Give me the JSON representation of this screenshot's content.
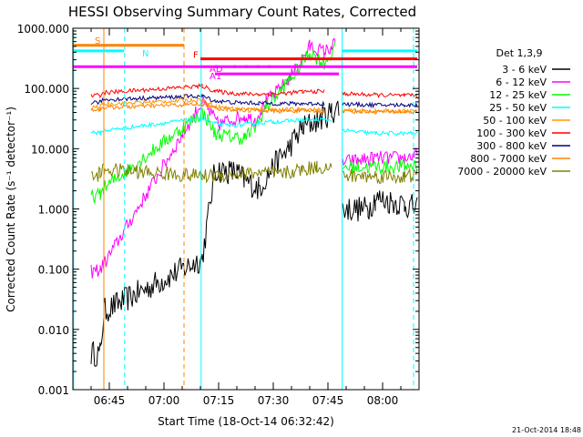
{
  "chart_data": {
    "type": "line",
    "title": "HESSI Observing Summary Count Rates, Corrected",
    "xlabel": "Start Time (18-Oct-14 06:32:42)",
    "ylabel": "Corrected Count Rate (s⁻¹ detector⁻¹)",
    "yscale": "log",
    "ylim": [
      0.001,
      1000
    ],
    "xlim_minutes_after_0630": [
      5,
      100
    ],
    "x_ticks": [
      {
        "label": "06:45",
        "minute": 15
      },
      {
        "label": "07:00",
        "minute": 30
      },
      {
        "label": "07:15",
        "minute": 45
      },
      {
        "label": "07:30",
        "minute": 60
      },
      {
        "label": "07:45",
        "minute": 75
      },
      {
        "label": "08:00",
        "minute": 90
      }
    ],
    "y_ticks": [
      {
        "label": "0.001",
        "value": 0.001
      },
      {
        "label": "0.010",
        "value": 0.01
      },
      {
        "label": "0.100",
        "value": 0.1
      },
      {
        "label": "1.000",
        "value": 1
      },
      {
        "label": "10.000",
        "value": 10
      },
      {
        "label": "100.000",
        "value": 100
      },
      {
        "label": "1000.000",
        "value": 1000
      }
    ],
    "legend_title": "Det 1,3,9",
    "legend_position": "right",
    "series": [
      {
        "name": "3 - 6 keV",
        "color": "#000000",
        "x": [
          5,
          10,
          12.5,
          13.5,
          40.5,
          44,
          50,
          52,
          56,
          60,
          64,
          68,
          72,
          76,
          78,
          78.8,
          79,
          86,
          88,
          96,
          99.5
        ],
        "y": [
          null,
          0.004,
          0.004,
          0.02,
          0.15,
          4.5,
          4,
          3,
          2.2,
          5,
          10,
          22,
          30,
          40,
          50,
          null,
          1,
          1,
          1.5,
          1.2,
          1
        ]
      },
      {
        "name": "6 - 12 keV",
        "color": "#ff00ff",
        "x": [
          5,
          10,
          12.5,
          13.5,
          40.5,
          42,
          45,
          48,
          52,
          55,
          58,
          62,
          66,
          70,
          74,
          77,
          78.8,
          79,
          88,
          96,
          99.5
        ],
        "y": [
          null,
          0.09,
          0.1,
          0.12,
          60,
          45,
          25,
          30,
          35,
          30,
          60,
          100,
          200,
          500,
          400,
          550,
          null,
          6,
          7,
          7,
          8
        ]
      },
      {
        "name": "12 - 25 keV",
        "color": "#00ff00",
        "x": [
          5,
          10,
          12.5,
          13.5,
          40.5,
          42,
          44,
          48,
          52,
          55,
          58,
          62,
          66,
          70,
          74,
          77,
          78.8,
          79,
          88,
          96,
          99.5
        ],
        "y": [
          null,
          1.6,
          1.7,
          2.2,
          40,
          30,
          18,
          16,
          15,
          22,
          50,
          90,
          180,
          400,
          260,
          450,
          null,
          5,
          5,
          5,
          5.5
        ]
      },
      {
        "name": "25 - 50 keV",
        "color": "#00ffff",
        "x": [
          5,
          10,
          12.5,
          13.5,
          40.5,
          44,
          48,
          52,
          56,
          60,
          64,
          68,
          72,
          76,
          78.8,
          79,
          88,
          96,
          99.5
        ],
        "y": [
          null,
          19,
          18,
          20,
          32,
          26,
          24,
          25,
          27,
          28,
          29,
          30,
          30,
          30,
          null,
          20,
          18,
          18,
          18
        ]
      },
      {
        "name": "50 - 100 keV",
        "color": "#ff9900",
        "x": [
          5,
          10,
          12.5,
          13.5,
          40.5,
          44,
          50,
          56,
          62,
          68,
          74,
          78.8,
          79,
          88,
          96,
          99.5
        ],
        "y": [
          null,
          48,
          50,
          55,
          65,
          50,
          46,
          45,
          44,
          45,
          44,
          null,
          43,
          42,
          42,
          42
        ]
      },
      {
        "name": "100 - 300 keV",
        "color": "#ff0000",
        "x": [
          5,
          10,
          12.5,
          13.5,
          40.5,
          44,
          50,
          56,
          62,
          68,
          74,
          78.8,
          79,
          88,
          96,
          99.5
        ],
        "y": [
          null,
          75,
          78,
          85,
          110,
          90,
          82,
          80,
          82,
          88,
          90,
          null,
          82,
          78,
          76,
          76
        ]
      },
      {
        "name": "300 - 800 keV",
        "color": "#000080",
        "x": [
          5,
          10,
          12.5,
          13.5,
          40.5,
          44,
          50,
          56,
          62,
          68,
          74,
          78.8,
          79,
          88,
          96,
          99.5
        ],
        "y": [
          null,
          58,
          60,
          65,
          75,
          62,
          58,
          57,
          56,
          56,
          56,
          null,
          55,
          53,
          53,
          53
        ]
      },
      {
        "name": "800 - 7000 keV",
        "color": "#ff8000",
        "x": [
          5,
          10,
          12.5,
          13.5,
          40.5,
          44,
          50,
          56,
          62,
          68,
          74,
          78.8,
          79,
          88,
          96,
          99.5
        ],
        "y": [
          null,
          44,
          45,
          48,
          55,
          47,
          44,
          43,
          42,
          43,
          42,
          null,
          42,
          41,
          41,
          41
        ]
      },
      {
        "name": "7000 - 20000 keV",
        "color": "#808000",
        "x": [
          5,
          10,
          12.5,
          13.5,
          40.5,
          44,
          50,
          56,
          62,
          68,
          72,
          76,
          78.8,
          79,
          88,
          96,
          99.5
        ],
        "y": [
          null,
          3.5,
          3.8,
          4.5,
          3.5,
          3.6,
          3.8,
          4,
          3.8,
          4.5,
          5,
          4.8,
          null,
          3.5,
          3.5,
          3.4,
          3.6
        ]
      }
    ],
    "annotations": [
      {
        "label": "S",
        "color": "#ff8000",
        "x_start": 5,
        "x_end": 35.5,
        "y": 520
      },
      {
        "label": "N",
        "color": "#00ffff",
        "x_start": 5,
        "x_end": 19,
        "y": 420
      },
      {
        "label": "F",
        "color": "#ff0000",
        "x_start": 40,
        "x_end": 99.5,
        "y": 310
      },
      {
        "label": "AD",
        "color": "#ff00ff",
        "x_start": 44,
        "x_end": 60,
        "y": 230
      },
      {
        "label": "A1",
        "color": "#ff00ff",
        "x_start": 44,
        "x_end": 78,
        "y": 175
      }
    ],
    "bars": [
      {
        "color": "#ff00ff",
        "x_start": 5,
        "x_end": 99.5,
        "y": 230
      },
      {
        "color": "#00ffff",
        "x_start": 79,
        "x_end": 99.5,
        "y": 420
      }
    ],
    "vertical_lines": [
      {
        "x": 13.5,
        "color": "#ff8000",
        "style": "solid"
      },
      {
        "x": 19.2,
        "color": "#00ffff",
        "style": "dashed"
      },
      {
        "x": 35.5,
        "color": "#ff8000",
        "style": "dashed"
      },
      {
        "x": 5.2,
        "color": "#00ffff",
        "style": "solid"
      },
      {
        "x": 40.2,
        "color": "#00ffff",
        "style": "solid"
      },
      {
        "x": 78.9,
        "color": "#00ffff",
        "style": "solid"
      },
      {
        "x": 98.5,
        "color": "#00ffff",
        "style": "dashed"
      }
    ],
    "grid": false
  },
  "footer_date": "21-Oct-2014 18:48"
}
